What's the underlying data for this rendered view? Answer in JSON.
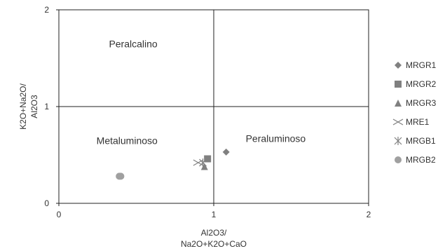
{
  "chart_data": {
    "type": "scatter",
    "xlim": [
      0,
      2
    ],
    "ylim": [
      0,
      2
    ],
    "x_ticks": [
      "0",
      "1",
      "2"
    ],
    "y_ticks": [
      "0",
      "1",
      "2"
    ],
    "xlabel_lines": [
      "Al2O3/",
      "Na2O+K2O+CaO"
    ],
    "ylabel_lines": [
      "K2O+Na2O/",
      "Al2O3"
    ],
    "divider_lines": {
      "x": 1,
      "y": 1
    },
    "region_labels": [
      {
        "text": "Peralcalino",
        "x": 0.48,
        "y": 1.65
      },
      {
        "text": "Metaluminoso",
        "x": 0.44,
        "y": 0.65
      },
      {
        "text": "Peraluminoso",
        "x": 1.4,
        "y": 0.67
      }
    ],
    "grid": false,
    "legend_position": "right",
    "series": [
      {
        "name": "MRGR1",
        "marker": "diamond",
        "color": "#808080",
        "points": [
          [
            1.08,
            0.53
          ]
        ]
      },
      {
        "name": "MRGR2",
        "marker": "square",
        "color": "#808080",
        "points": [
          [
            0.96,
            0.46
          ]
        ]
      },
      {
        "name": "MRGR3",
        "marker": "triangle",
        "color": "#808080",
        "points": [
          [
            0.94,
            0.38
          ]
        ]
      },
      {
        "name": "MRE1",
        "marker": "x",
        "color": "#808080",
        "points": [
          [
            0.9,
            0.42
          ]
        ]
      },
      {
        "name": "MRGB1",
        "marker": "asterisk",
        "color": "#808080",
        "points": [
          [
            0.93,
            0.42
          ]
        ]
      },
      {
        "name": "MRGB2",
        "marker": "circle",
        "color": "#a0a0a0",
        "points": [
          [
            0.39,
            0.28
          ],
          [
            0.4,
            0.28
          ]
        ]
      }
    ]
  }
}
